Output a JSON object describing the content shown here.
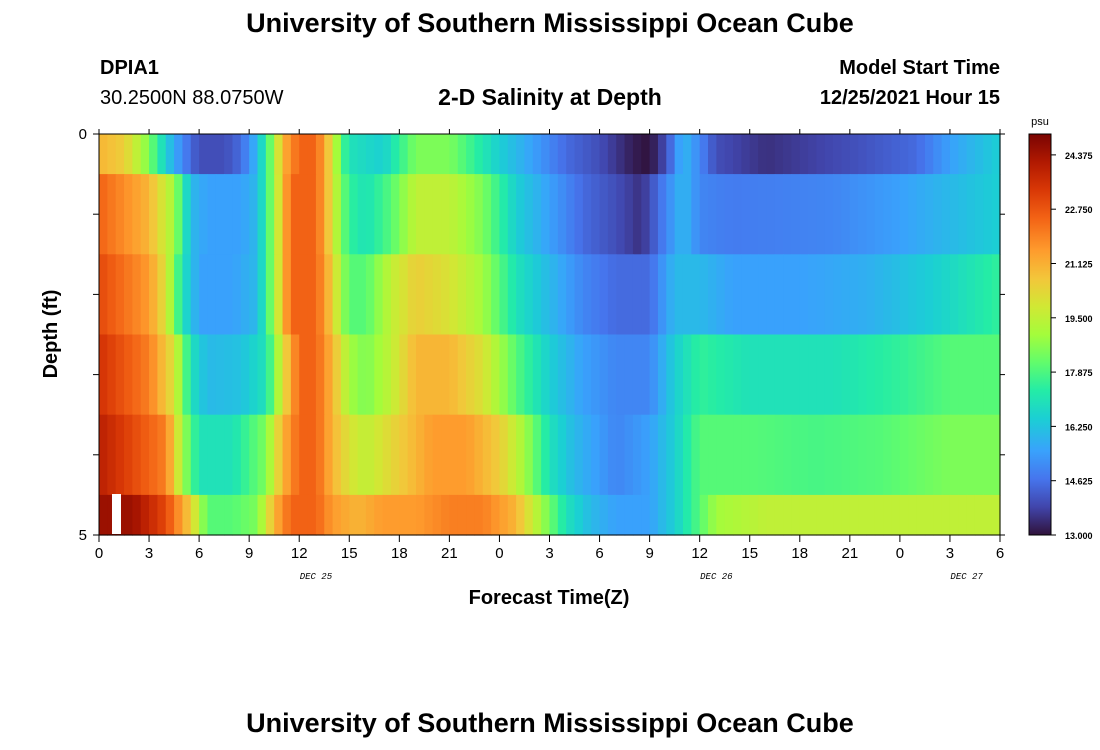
{
  "header": {
    "title": "University of Southern Mississippi Ocean Cube",
    "station_name": "DPIA1",
    "station_coords": "30.2500N  88.0750W",
    "chart_title": "2-D Salinity at Depth",
    "model_start_label": "Model Start Time",
    "model_start_value": "12/25/2021 Hour 15"
  },
  "footer": {
    "title": "University of Southern Mississippi Ocean Cube"
  },
  "chart_data": {
    "type": "heatmap",
    "title": "2-D Salinity at Depth",
    "xlabel": "Forecast Time(Z)",
    "ylabel": "Depth (ft)",
    "x_tick_labels": [
      "0",
      "3",
      "6",
      "9",
      "12",
      "15",
      "18",
      "21",
      "0",
      "3",
      "6",
      "9",
      "12",
      "15",
      "18",
      "21",
      "0",
      "3",
      "6"
    ],
    "x_date_labels": [
      {
        "label": "DEC 25",
        "at_hour": 13
      },
      {
        "label": "DEC 26",
        "at_hour": 37
      },
      {
        "label": "DEC 27",
        "at_hour": 52
      }
    ],
    "x_range_hours": [
      0,
      54
    ],
    "y_tick_labels": [
      "0",
      "5"
    ],
    "ylim": [
      0,
      5
    ],
    "y_minor_ticks": 5,
    "colorbar": {
      "unit": "psu",
      "min": 13.0,
      "max": 25.0,
      "labels": [
        "24.375",
        "22.750",
        "21.125",
        "19.500",
        "17.875",
        "16.250",
        "14.625",
        "13.000"
      ]
    },
    "depth_layers": [
      0,
      1,
      2,
      3,
      4,
      5
    ],
    "hours_per_column": 0.5,
    "profiles": [
      {
        "depth": 0,
        "knots": [
          [
            0,
            21
          ],
          [
            1.5,
            20.5
          ],
          [
            3,
            18.5
          ],
          [
            4,
            16.5
          ],
          [
            5,
            15
          ],
          [
            6,
            14
          ],
          [
            7.5,
            14
          ],
          [
            8.5,
            14.5
          ],
          [
            9.5,
            16
          ],
          [
            10.5,
            19
          ],
          [
            11,
            21
          ],
          [
            12,
            22.5
          ],
          [
            13,
            22.5
          ],
          [
            14,
            20
          ],
          [
            14.5,
            18
          ],
          [
            15,
            17
          ],
          [
            17,
            16.5
          ],
          [
            19,
            18.5
          ],
          [
            21,
            18.5
          ],
          [
            22.5,
            17.5
          ],
          [
            24,
            16.5
          ],
          [
            26,
            15.5
          ],
          [
            28,
            14.5
          ],
          [
            30,
            14
          ],
          [
            32,
            13.2
          ],
          [
            33,
            13
          ],
          [
            34,
            14
          ],
          [
            35,
            16
          ],
          [
            36,
            15
          ],
          [
            37,
            14
          ],
          [
            40,
            13.5
          ],
          [
            45,
            14
          ],
          [
            49,
            14.5
          ],
          [
            51,
            15.5
          ],
          [
            54,
            16.5
          ]
        ]
      },
      {
        "depth": 1,
        "knots": [
          [
            0,
            22.5
          ],
          [
            3,
            21
          ],
          [
            4.5,
            19
          ],
          [
            5.5,
            16
          ],
          [
            6.5,
            15.5
          ],
          [
            8.5,
            15.5
          ],
          [
            9.5,
            16
          ],
          [
            10.5,
            19
          ],
          [
            11.5,
            22.5
          ],
          [
            13,
            22.5
          ],
          [
            14,
            20
          ],
          [
            14.5,
            18.5
          ],
          [
            15,
            17.5
          ],
          [
            16,
            17
          ],
          [
            17.5,
            18
          ],
          [
            19,
            19.5
          ],
          [
            21,
            19.5
          ],
          [
            23,
            18.5
          ],
          [
            25,
            16.5
          ],
          [
            27,
            15.5
          ],
          [
            29,
            14.5
          ],
          [
            31,
            14
          ],
          [
            32.5,
            13.5
          ],
          [
            33.5,
            14.5
          ],
          [
            35,
            16
          ],
          [
            36,
            15
          ],
          [
            38,
            14.8
          ],
          [
            44,
            15
          ],
          [
            48,
            15.5
          ],
          [
            51,
            16
          ],
          [
            54,
            16.5
          ]
        ]
      },
      {
        "depth": 2,
        "knots": [
          [
            0,
            23
          ],
          [
            3,
            21.5
          ],
          [
            4,
            20
          ],
          [
            5,
            17
          ],
          [
            6,
            15.5
          ],
          [
            8,
            15.5
          ],
          [
            9.5,
            16
          ],
          [
            10.5,
            19
          ],
          [
            11.5,
            22.5
          ],
          [
            13,
            22.5
          ],
          [
            14,
            20.5
          ],
          [
            14.5,
            19
          ],
          [
            15,
            18
          ],
          [
            16,
            18
          ],
          [
            17.5,
            19.5
          ],
          [
            19,
            20.5
          ],
          [
            21,
            20
          ],
          [
            23,
            19
          ],
          [
            25,
            17
          ],
          [
            27,
            16
          ],
          [
            29,
            15
          ],
          [
            31,
            14.5
          ],
          [
            33,
            14.5
          ],
          [
            34.5,
            16
          ],
          [
            36,
            16
          ],
          [
            38,
            15.5
          ],
          [
            42,
            15.5
          ],
          [
            46,
            15.8
          ],
          [
            50,
            16.5
          ],
          [
            54,
            17.5
          ]
        ]
      },
      {
        "depth": 3,
        "knots": [
          [
            0,
            23.5
          ],
          [
            3,
            22
          ],
          [
            4.5,
            20
          ],
          [
            5.5,
            17
          ],
          [
            6.5,
            16
          ],
          [
            8.5,
            16.2
          ],
          [
            10,
            17
          ],
          [
            11,
            20
          ],
          [
            12,
            22.5
          ],
          [
            13,
            22.5
          ],
          [
            14,
            21
          ],
          [
            15,
            19
          ],
          [
            16,
            18.5
          ],
          [
            17.5,
            19.5
          ],
          [
            19,
            21
          ],
          [
            21,
            21
          ],
          [
            23,
            20
          ],
          [
            25,
            18
          ],
          [
            27,
            16.5
          ],
          [
            29,
            15.5
          ],
          [
            31,
            15
          ],
          [
            33,
            15
          ],
          [
            34.5,
            16.5
          ],
          [
            36,
            17.5
          ],
          [
            39,
            17
          ],
          [
            44,
            17
          ],
          [
            48,
            17.5
          ],
          [
            51,
            18
          ],
          [
            54,
            18
          ]
        ]
      },
      {
        "depth": 4,
        "knots": [
          [
            0,
            24
          ],
          [
            2,
            23
          ],
          [
            4,
            22
          ],
          [
            5,
            19
          ],
          [
            6,
            17
          ],
          [
            8,
            17
          ],
          [
            10,
            18.5
          ],
          [
            11,
            21
          ],
          [
            12,
            22.5
          ],
          [
            13,
            22.5
          ],
          [
            14,
            21
          ],
          [
            15,
            20
          ],
          [
            16,
            19.5
          ],
          [
            18,
            20.5
          ],
          [
            20,
            21.5
          ],
          [
            22,
            21.5
          ],
          [
            24,
            20.5
          ],
          [
            25.5,
            19
          ],
          [
            27,
            17
          ],
          [
            28.5,
            16
          ],
          [
            31,
            15
          ],
          [
            33,
            15.5
          ],
          [
            34.5,
            16.5
          ],
          [
            36,
            18
          ],
          [
            39,
            18
          ],
          [
            43,
            17.8
          ],
          [
            47,
            18
          ],
          [
            51,
            18.5
          ],
          [
            54,
            18.5
          ]
        ]
      },
      {
        "depth": 5,
        "knots": [
          [
            0,
            24.5
          ],
          [
            2,
            24.5
          ],
          [
            4,
            23
          ],
          [
            5.5,
            20.5
          ],
          [
            6.5,
            18
          ],
          [
            8,
            18
          ],
          [
            9.5,
            18.5
          ],
          [
            10.5,
            21
          ],
          [
            11.5,
            22.5
          ],
          [
            13,
            22.5
          ],
          [
            14,
            21.5
          ],
          [
            15.5,
            21
          ],
          [
            17,
            21.5
          ],
          [
            19,
            21.5
          ],
          [
            21,
            22
          ],
          [
            23,
            22
          ],
          [
            25,
            21
          ],
          [
            26.5,
            19
          ],
          [
            28,
            17
          ],
          [
            29.5,
            16
          ],
          [
            31,
            15.5
          ],
          [
            33,
            15.5
          ],
          [
            34.5,
            16.5
          ],
          [
            35.5,
            17.5
          ],
          [
            37,
            19
          ],
          [
            40,
            19.5
          ],
          [
            44,
            19.5
          ],
          [
            48,
            19.5
          ],
          [
            51,
            19.5
          ],
          [
            54,
            19.5
          ]
        ]
      }
    ]
  }
}
